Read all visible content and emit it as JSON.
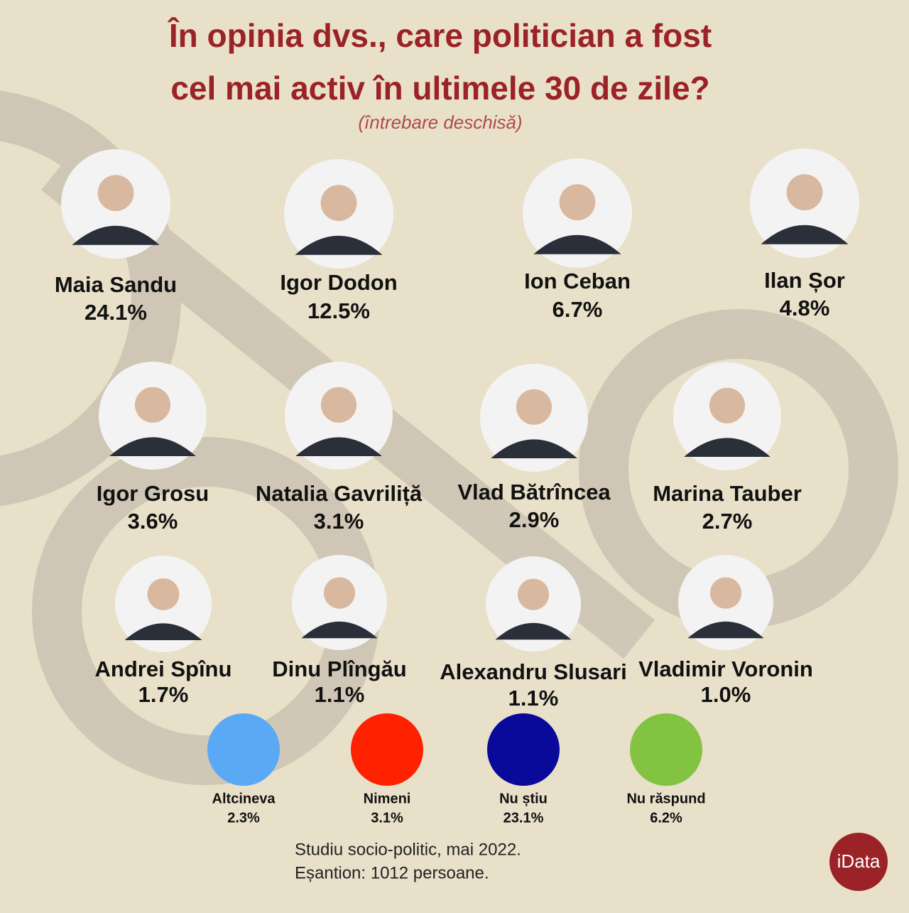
{
  "header": {
    "title_line1": "În opinia dvs., care politician a fost",
    "title_line2": "cel mai activ în ultimele 30 de zile?",
    "subtitle": "(întrebare deschisă)"
  },
  "politicians": [
    {
      "name": "Maia Sandu",
      "value": "24.1%"
    },
    {
      "name": "Igor Dodon",
      "value": "12.5%"
    },
    {
      "name": "Ion Ceban",
      "value": "6.7%"
    },
    {
      "name": "Ilan Șor",
      "value": "4.8%"
    },
    {
      "name": "Igor Grosu",
      "value": "3.6%"
    },
    {
      "name": "Natalia Gavriliță",
      "value": "3.1%"
    },
    {
      "name": "Vlad Bătrîncea",
      "value": "2.9%"
    },
    {
      "name": "Marina Tauber",
      "value": "2.7%"
    },
    {
      "name": "Andrei Spînu",
      "value": "1.7%"
    },
    {
      "name": "Dinu Plîngău",
      "value": "1.1%"
    },
    {
      "name": "Alexandru Slusari",
      "value": "1.1%"
    },
    {
      "name": "Vladimir Voronin",
      "value": "1.0%"
    }
  ],
  "other_answers": [
    {
      "name": "Altcineva",
      "value": "2.3%",
      "color": "#5aa9f5"
    },
    {
      "name": "Nimeni",
      "value": "3.1%",
      "color": "#ff2200"
    },
    {
      "name": "Nu știu",
      "value": "23.1%",
      "color": "#0a0a9a"
    },
    {
      "name": "Nu răspund",
      "value": "6.2%",
      "color": "#82c341"
    }
  ],
  "footer": {
    "line1": "Studiu socio-politic, mai 2022.",
    "line2": "Eșantion: 1012 persoane."
  },
  "logo": "iData"
}
